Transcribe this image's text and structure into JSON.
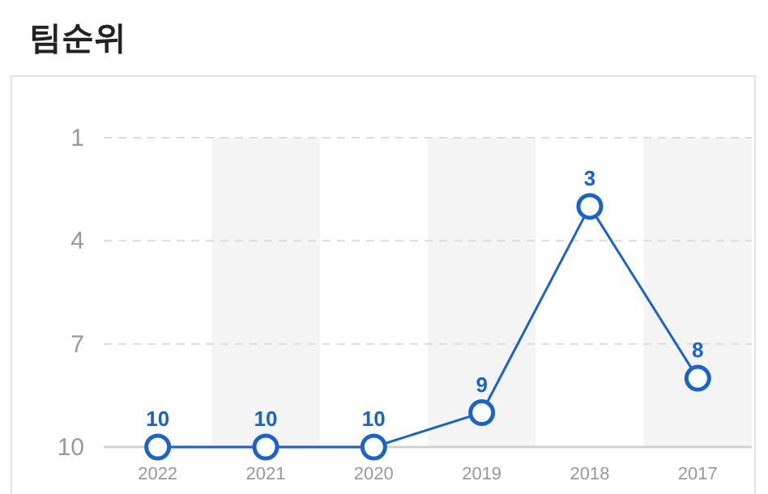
{
  "chart_data": {
    "type": "line",
    "title": "팀순위",
    "categories": [
      "2022",
      "2021",
      "2020",
      "2019",
      "2018",
      "2017"
    ],
    "series": [
      {
        "color": "#1a63c9",
        "values": [
          10,
          10,
          10,
          9,
          3,
          8
        ]
      }
    ],
    "ylim": [
      10,
      1
    ],
    "yticks": [
      1,
      4,
      7,
      10
    ],
    "grid": "y",
    "marker": "circle",
    "data_labels": true,
    "bands": [
      {
        "axis": "x",
        "from": "2021",
        "to": "2021",
        "color": "#f4f4f5"
      },
      {
        "axis": "x",
        "from": "2019",
        "to": "2019",
        "color": "#f4f4f5"
      },
      {
        "axis": "x",
        "from": "2017",
        "to": "2017",
        "color": "#f4f4f5"
      }
    ]
  }
}
